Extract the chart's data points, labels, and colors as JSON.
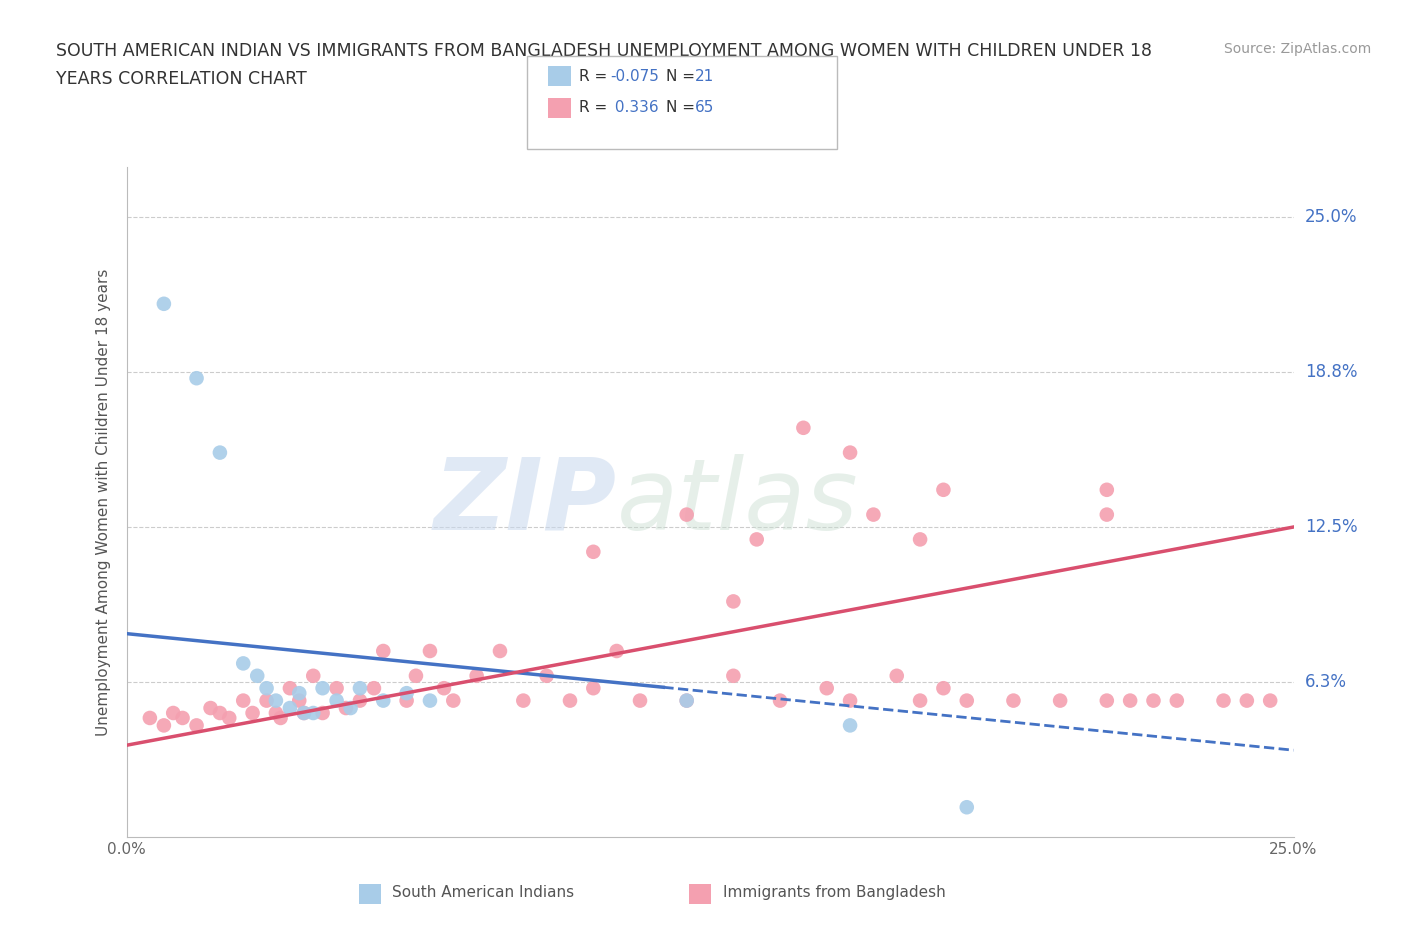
{
  "title_line1": "SOUTH AMERICAN INDIAN VS IMMIGRANTS FROM BANGLADESH UNEMPLOYMENT AMONG WOMEN WITH CHILDREN UNDER 18",
  "title_line2": "YEARS CORRELATION CHART",
  "source": "Source: ZipAtlas.com",
  "ylabel": "Unemployment Among Women with Children Under 18 years",
  "xlim": [
    0.0,
    0.25
  ],
  "ylim": [
    0.0,
    0.27
  ],
  "yticks": [
    0.0,
    0.0625,
    0.125,
    0.1875,
    0.25
  ],
  "ytick_labels": [
    "",
    "6.3%",
    "12.5%",
    "18.8%",
    "25.0%"
  ],
  "xtick_positions": [
    0.0,
    0.025,
    0.05,
    0.075,
    0.1,
    0.125,
    0.15,
    0.175,
    0.2,
    0.225,
    0.25
  ],
  "xtick_labels": [
    "0.0%",
    "",
    "",
    "",
    "",
    "",
    "",
    "",
    "",
    "",
    "25.0%"
  ],
  "watermark_zip": "ZIP",
  "watermark_atlas": "atlas",
  "legend_r1": "R = -0.075",
  "legend_n1": "N = 21",
  "legend_r2": "R =  0.336",
  "legend_n2": "N = 65",
  "color_blue": "#a8cce8",
  "color_pink": "#f4a0b0",
  "color_trendline_blue": "#4472c4",
  "color_trendline_pink": "#d94f6e",
  "color_label": "#4472c4",
  "color_text": "#404040",
  "background_color": "#ffffff",
  "blue_trend_x0": 0.0,
  "blue_trend_y0": 0.082,
  "blue_trend_x1": 0.25,
  "blue_trend_y1": 0.035,
  "pink_trend_x0": 0.0,
  "pink_trend_y0": 0.037,
  "pink_trend_x1": 0.25,
  "pink_trend_y1": 0.125,
  "blue_x": [
    0.008,
    0.015,
    0.02,
    0.025,
    0.028,
    0.03,
    0.032,
    0.035,
    0.037,
    0.038,
    0.04,
    0.042,
    0.045,
    0.048,
    0.05,
    0.055,
    0.06,
    0.065,
    0.12,
    0.18,
    0.155
  ],
  "blue_y": [
    0.215,
    0.185,
    0.155,
    0.07,
    0.065,
    0.06,
    0.055,
    0.052,
    0.058,
    0.05,
    0.05,
    0.06,
    0.055,
    0.052,
    0.06,
    0.055,
    0.058,
    0.055,
    0.055,
    0.012,
    0.045
  ],
  "pink_x": [
    0.005,
    0.008,
    0.01,
    0.012,
    0.015,
    0.018,
    0.02,
    0.022,
    0.025,
    0.027,
    0.03,
    0.032,
    0.033,
    0.035,
    0.037,
    0.038,
    0.04,
    0.042,
    0.045,
    0.047,
    0.05,
    0.053,
    0.055,
    0.06,
    0.062,
    0.065,
    0.068,
    0.07,
    0.075,
    0.08,
    0.085,
    0.09,
    0.095,
    0.1,
    0.105,
    0.11,
    0.12,
    0.13,
    0.135,
    0.14,
    0.15,
    0.155,
    0.165,
    0.17,
    0.175,
    0.18,
    0.19,
    0.2,
    0.21,
    0.21,
    0.215,
    0.22,
    0.225,
    0.235,
    0.24,
    0.245,
    0.175,
    0.155,
    0.16,
    0.145,
    0.13,
    0.12,
    0.1,
    0.17,
    0.21
  ],
  "pink_y": [
    0.048,
    0.045,
    0.05,
    0.048,
    0.045,
    0.052,
    0.05,
    0.048,
    0.055,
    0.05,
    0.055,
    0.05,
    0.048,
    0.06,
    0.055,
    0.05,
    0.065,
    0.05,
    0.06,
    0.052,
    0.055,
    0.06,
    0.075,
    0.055,
    0.065,
    0.075,
    0.06,
    0.055,
    0.065,
    0.075,
    0.055,
    0.065,
    0.055,
    0.06,
    0.075,
    0.055,
    0.055,
    0.065,
    0.12,
    0.055,
    0.06,
    0.055,
    0.065,
    0.055,
    0.06,
    0.055,
    0.055,
    0.055,
    0.055,
    0.13,
    0.055,
    0.055,
    0.055,
    0.055,
    0.055,
    0.055,
    0.14,
    0.155,
    0.13,
    0.165,
    0.095,
    0.13,
    0.115,
    0.12,
    0.14
  ]
}
